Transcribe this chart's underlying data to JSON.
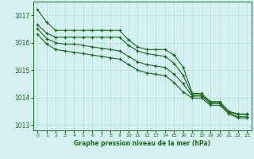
{
  "x": [
    0,
    1,
    2,
    3,
    4,
    5,
    6,
    7,
    8,
    9,
    10,
    11,
    12,
    13,
    14,
    15,
    16,
    17,
    18,
    19,
    20,
    21,
    22,
    23
  ],
  "line1": [
    1017.2,
    1016.75,
    1016.45,
    1016.45,
    1016.45,
    1016.45,
    1016.45,
    1016.45,
    1016.45,
    1016.45,
    1016.1,
    1015.85,
    1015.75,
    1015.75,
    1015.75,
    1015.55,
    1015.1,
    1014.15,
    1014.15,
    1013.85,
    1013.85,
    1013.5,
    1013.4,
    1013.4
  ],
  "line2": [
    1016.65,
    1016.35,
    1016.2,
    1016.2,
    1016.2,
    1016.2,
    1016.2,
    1016.2,
    1016.2,
    1016.2,
    1015.9,
    1015.7,
    1015.6,
    1015.55,
    1015.5,
    1015.25,
    1014.8,
    1014.1,
    1014.1,
    1013.82,
    1013.82,
    1013.48,
    1013.38,
    1013.38
  ],
  "line3": [
    1016.5,
    1016.15,
    1016.0,
    1015.95,
    1015.95,
    1015.9,
    1015.85,
    1015.8,
    1015.75,
    1015.7,
    1015.5,
    1015.3,
    1015.2,
    1015.15,
    1015.1,
    1014.85,
    1014.5,
    1014.05,
    1014.05,
    1013.78,
    1013.78,
    1013.45,
    1013.3,
    1013.3
  ],
  "line4": [
    1016.3,
    1015.95,
    1015.75,
    1015.7,
    1015.65,
    1015.6,
    1015.55,
    1015.5,
    1015.45,
    1015.4,
    1015.2,
    1015.0,
    1014.9,
    1014.85,
    1014.8,
    1014.55,
    1014.2,
    1013.98,
    1013.98,
    1013.72,
    1013.72,
    1013.42,
    1013.25,
    1013.25
  ],
  "bg_color": "#d4f0f0",
  "line_color": "#1a6b1a",
  "grid_color": "#b8dede",
  "title": "Graphe pression niveau de la mer (hPa)",
  "title_color": "#1a6b1a",
  "ylim": [
    1012.8,
    1017.5
  ],
  "yticks": [
    1013,
    1014,
    1015,
    1016,
    1017
  ],
  "xticks": [
    0,
    1,
    2,
    3,
    4,
    5,
    6,
    7,
    8,
    9,
    10,
    11,
    12,
    13,
    14,
    15,
    16,
    17,
    18,
    19,
    20,
    21,
    22,
    23
  ]
}
